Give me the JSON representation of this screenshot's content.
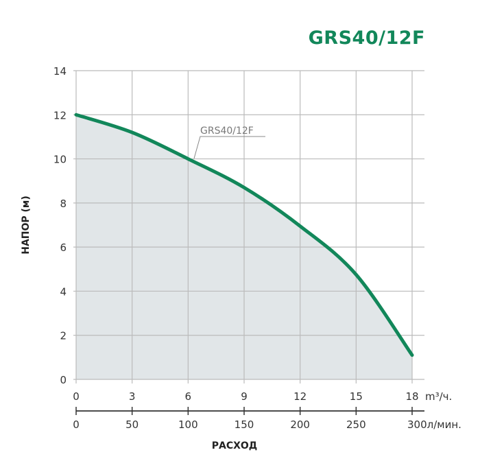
{
  "title": "GRS40/12F",
  "chart_data": {
    "type": "area",
    "title": "GRS40/12F",
    "ylabel": "НАПОР (м)",
    "xlabel": "РАСХОД",
    "x_unit": "m³/ч.",
    "x2_unit": "л/мин.",
    "ylim": [
      0,
      14
    ],
    "xlim": [
      0,
      18
    ],
    "yticks": [
      "0",
      "2",
      "4",
      "6",
      "8",
      "10",
      "12",
      "14"
    ],
    "xticks": [
      "0",
      "3",
      "6",
      "9",
      "12",
      "15",
      "18"
    ],
    "x2ticks": [
      "0",
      "50",
      "100",
      "150",
      "200",
      "250",
      "300"
    ],
    "grid": true,
    "series": [
      {
        "name": "GRS40/12F",
        "color": "#12875a",
        "fill": "#e1e6e8",
        "x": [
          0,
          3,
          6,
          9,
          12,
          15,
          18
        ],
        "y": [
          12,
          11.2,
          10,
          8.7,
          6.95,
          4.75,
          1.1
        ]
      }
    ]
  }
}
